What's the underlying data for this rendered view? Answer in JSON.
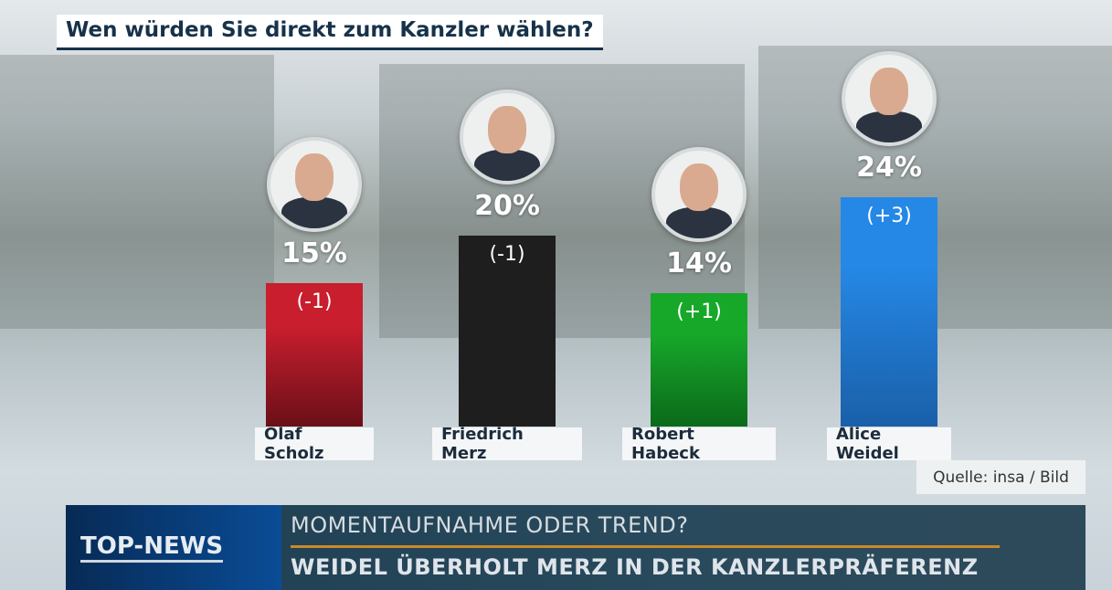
{
  "title": "Wen würden Sie direkt zum Kanzler wählen?",
  "chart_data": {
    "type": "bar",
    "title": "Wen würden Sie direkt zum Kanzler wählen?",
    "categories": [
      "Olaf Scholz",
      "Friedrich Merz",
      "Robert Habeck",
      "Alice Weidel"
    ],
    "values": [
      15,
      20,
      14,
      24
    ],
    "value_labels": [
      "15%",
      "20%",
      "14%",
      "24%"
    ],
    "changes": [
      "(-1)",
      "(-1)",
      "(+1)",
      "(+3)"
    ],
    "colors": [
      "#c81e2e",
      "#1f1f1f",
      "#17a82a",
      "#2588e6"
    ],
    "unit": "%"
  },
  "source": "Quelle: insa / Bild",
  "banner": {
    "tag": "TOP-NEWS",
    "line1": "MOMENTAUFNAHME ODER TREND?",
    "line2": "WEIDEL ÜBERHOLT MERZ IN DER KANZLERPRÄFERENZ",
    "accent": "#c98a2a"
  }
}
